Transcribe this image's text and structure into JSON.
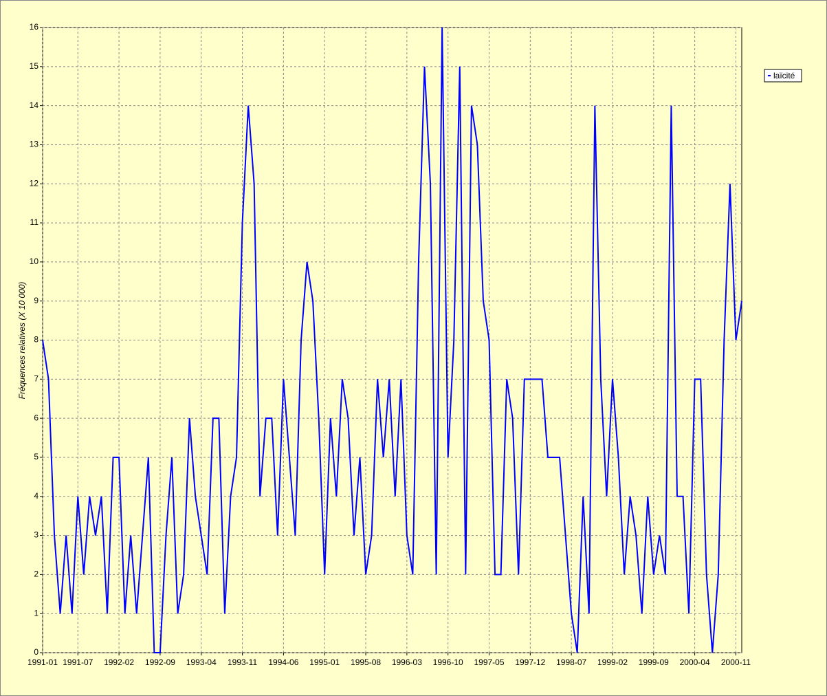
{
  "chart_data": {
    "type": "line",
    "ylabel": "Fréquences relatives (X 10 000)",
    "categories": [
      "1991-01",
      null,
      null,
      null,
      null,
      null,
      "1991-07",
      null,
      null,
      null,
      null,
      null,
      null,
      "1992-02",
      null,
      null,
      null,
      null,
      null,
      null,
      "1992-09",
      null,
      null,
      null,
      null,
      null,
      null,
      "1993-04",
      null,
      null,
      null,
      null,
      null,
      null,
      "1993-11",
      null,
      null,
      null,
      null,
      null,
      null,
      "1994-06",
      null,
      null,
      null,
      null,
      null,
      null,
      "1995-01",
      null,
      null,
      null,
      null,
      null,
      null,
      "1995-08",
      null,
      null,
      null,
      null,
      null,
      null,
      "1996-03",
      null,
      null,
      null,
      null,
      null,
      null,
      "1996-10",
      null,
      null,
      null,
      null,
      null,
      null,
      "1997-05",
      null,
      null,
      null,
      null,
      null,
      null,
      "1997-12",
      null,
      null,
      null,
      null,
      null,
      null,
      "1998-07",
      null,
      null,
      null,
      null,
      null,
      null,
      "1999-02",
      null,
      null,
      null,
      null,
      null,
      null,
      "1999-09",
      null,
      null,
      null,
      null,
      null,
      null,
      "2000-04",
      null,
      null,
      null,
      null,
      null,
      null,
      "2000-11",
      null
    ],
    "series": [
      {
        "name": "laïcité",
        "color": "#0000ff",
        "values": [
          8,
          7,
          3,
          1,
          3,
          1,
          4,
          2,
          4,
          3,
          4,
          1,
          5,
          5,
          1,
          3,
          1,
          3,
          5,
          0,
          0,
          3,
          5,
          1,
          2,
          6,
          4,
          3,
          2,
          6,
          6,
          1,
          4,
          5,
          11,
          14,
          12,
          4,
          6,
          6,
          3,
          7,
          5,
          3,
          8,
          10,
          9,
          6,
          2,
          6,
          4,
          7,
          6,
          3,
          5,
          2,
          3,
          7,
          5,
          7,
          4,
          7,
          3,
          2,
          10,
          15,
          12,
          2,
          16,
          5,
          8,
          15,
          2,
          14,
          13,
          9,
          8,
          2,
          2,
          7,
          6,
          2,
          7,
          7,
          7,
          7,
          5,
          5,
          5,
          3,
          1,
          0,
          4,
          1,
          14,
          7,
          4,
          7,
          5,
          2,
          4,
          3,
          1,
          4,
          2,
          3,
          2,
          14,
          4,
          4,
          1,
          7,
          7,
          2,
          0,
          2,
          8,
          12,
          8,
          9
        ]
      }
    ],
    "ylim": [
      0,
      16
    ],
    "yticks": [
      0,
      1,
      2,
      3,
      4,
      5,
      6,
      7,
      8,
      9,
      10,
      11,
      12,
      13,
      14,
      15,
      16
    ],
    "grid": true,
    "legend": "right"
  }
}
